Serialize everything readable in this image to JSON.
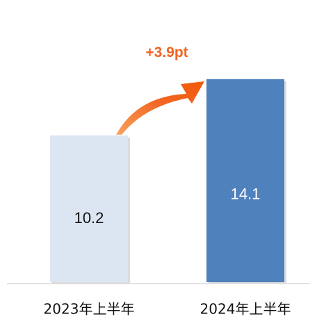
{
  "chart_data": {
    "type": "bar",
    "categories": [
      "2023年上半年",
      "2024年上半年"
    ],
    "values": [
      10.2,
      14.1
    ],
    "value_labels": [
      "10.2",
      "14.1"
    ],
    "annotation": "+3.9pt",
    "ylim": [
      0,
      14.1
    ],
    "grid": false,
    "legend": "none",
    "colors": {
      "bars": [
        "#dce6f2",
        "#4f81bd"
      ],
      "bar_shadow": "#bfbfbf",
      "value_text": [
        "#111111",
        "#ffffff"
      ],
      "annotation_arrow": "#f26522",
      "annotation_text": "#f26522",
      "axis": "#d9d9d9"
    }
  }
}
